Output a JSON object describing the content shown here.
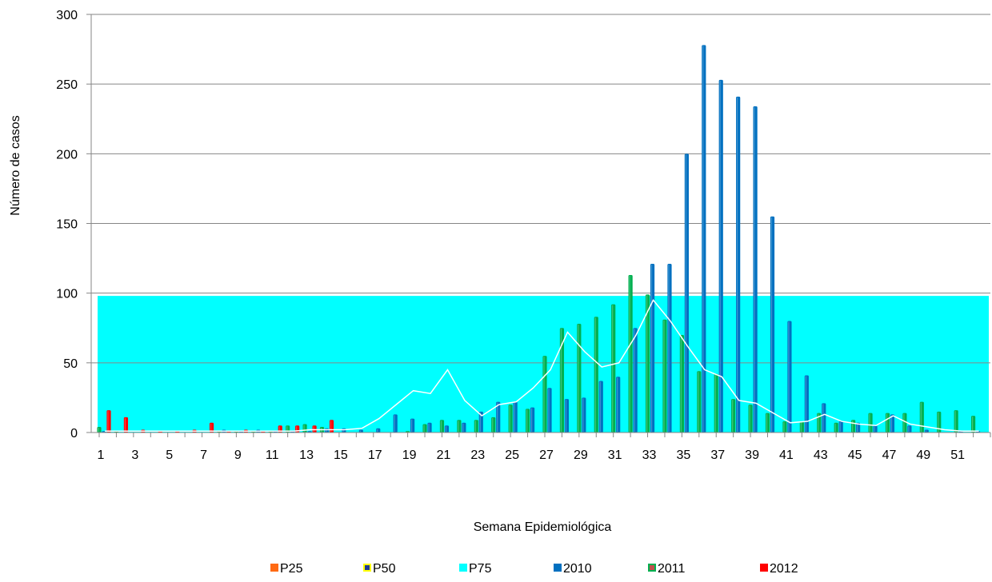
{
  "chart_data": {
    "type": "bar",
    "xlabel": "Semana Epidemiológica",
    "ylabel": "Número de casos",
    "ylim": [
      0,
      300
    ],
    "yticks": [
      0,
      50,
      100,
      150,
      200,
      250,
      300
    ],
    "x": [
      1,
      2,
      3,
      4,
      5,
      6,
      7,
      8,
      9,
      10,
      11,
      12,
      13,
      14,
      15,
      16,
      17,
      18,
      19,
      20,
      21,
      22,
      23,
      24,
      25,
      26,
      27,
      28,
      29,
      30,
      31,
      32,
      33,
      34,
      35,
      36,
      37,
      38,
      39,
      40,
      41,
      42,
      43,
      44,
      45,
      46,
      47,
      48,
      49,
      50,
      51,
      52
    ],
    "xtick_labels": [
      "1",
      "3",
      "5",
      "7",
      "9",
      "11",
      "13",
      "15",
      "17",
      "19",
      "21",
      "23",
      "25",
      "27",
      "29",
      "31",
      "33",
      "35",
      "37",
      "39",
      "41",
      "43",
      "45",
      "47",
      "49",
      "51"
    ],
    "grid": true,
    "legend_position": "bottom",
    "series": [
      {
        "name": "P25",
        "kind": "area",
        "color": "#ff6a13",
        "values": [
          0,
          0,
          0,
          0,
          0,
          0,
          0,
          0,
          0,
          0,
          0,
          0,
          0,
          0,
          0,
          0,
          0,
          0,
          0,
          0,
          0,
          0,
          0,
          0,
          0,
          0,
          0,
          0,
          0,
          0,
          0,
          0,
          0,
          0,
          0,
          0,
          0,
          0,
          0,
          0,
          0,
          0,
          0,
          0,
          0,
          0,
          0,
          0,
          0,
          0,
          0,
          0
        ]
      },
      {
        "name": "P50",
        "kind": "line",
        "color": "#ffffff",
        "values": [
          1,
          1,
          1,
          1,
          1,
          1,
          1,
          1,
          1,
          1,
          1,
          1,
          2,
          2,
          2,
          3,
          10,
          20,
          30,
          28,
          45,
          23,
          12,
          20,
          22,
          32,
          45,
          72,
          58,
          47,
          50,
          70,
          95,
          80,
          62,
          45,
          40,
          23,
          21,
          14,
          7,
          8,
          13,
          8,
          6,
          5,
          12,
          6,
          4,
          2,
          1,
          1
        ]
      },
      {
        "name": "P75",
        "kind": "area",
        "color": "#00ffff",
        "values": [
          98,
          98,
          98,
          98,
          98,
          98,
          98,
          98,
          98,
          98,
          98,
          98,
          98,
          98,
          98,
          98,
          98,
          98,
          98,
          98,
          98,
          98,
          98,
          98,
          98,
          98,
          98,
          98,
          98,
          98,
          98,
          98,
          98,
          98,
          98,
          98,
          98,
          98,
          98,
          98,
          98,
          98,
          98,
          98,
          98,
          98,
          98,
          98,
          98,
          98,
          98,
          98
        ]
      },
      {
        "name": "2010",
        "kind": "bar",
        "color": "#0070c0",
        "values": [
          1,
          0,
          0,
          0,
          0,
          0,
          0,
          2,
          1,
          2,
          1,
          1,
          1,
          3,
          3,
          2,
          3,
          13,
          10,
          7,
          5,
          7,
          15,
          22,
          22,
          18,
          32,
          24,
          25,
          37,
          40,
          75,
          121,
          121,
          200,
          278,
          253,
          241,
          234,
          155,
          80,
          41,
          21,
          8,
          7,
          5,
          13,
          5,
          2,
          0,
          1,
          1
        ]
      },
      {
        "name": "2011",
        "kind": "bar",
        "color": "#00b050",
        "values": [
          4,
          1,
          0,
          0,
          0,
          0,
          0,
          1,
          1,
          1,
          1,
          5,
          6,
          4,
          0,
          0,
          0,
          0,
          1,
          6,
          9,
          9,
          9,
          11,
          20,
          17,
          55,
          75,
          78,
          83,
          92,
          113,
          99,
          81,
          70,
          44,
          42,
          24,
          20,
          14,
          8,
          8,
          14,
          7,
          9,
          14,
          14,
          14,
          22,
          15,
          16,
          12
        ]
      },
      {
        "name": "2012",
        "kind": "bar",
        "color": "#ff0000",
        "values": [
          16,
          11,
          2,
          1,
          1,
          2,
          7,
          1,
          2,
          1,
          5,
          5,
          5,
          9,
          0,
          0,
          0,
          0,
          0,
          0,
          0,
          0,
          0,
          0,
          0,
          0,
          0,
          0,
          0,
          0,
          0,
          0,
          0,
          0,
          0,
          0,
          0,
          0,
          0,
          0,
          0,
          0,
          0,
          0,
          0,
          0,
          0,
          0,
          0,
          0,
          0,
          0
        ]
      }
    ]
  }
}
